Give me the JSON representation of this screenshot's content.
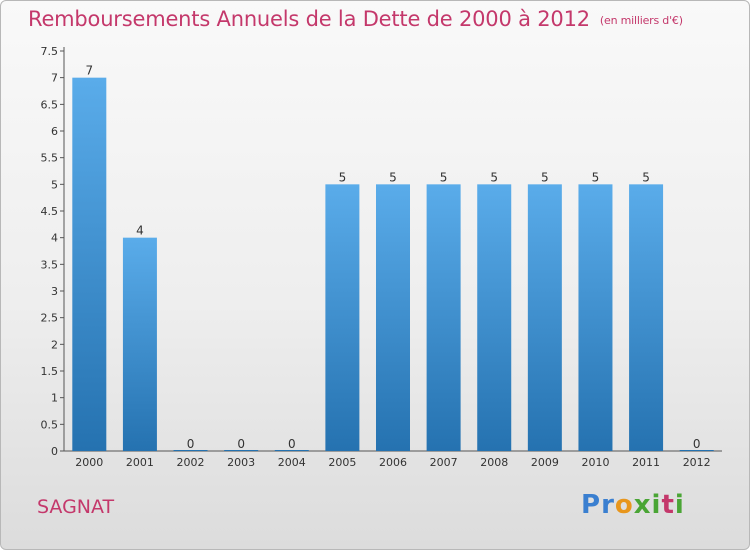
{
  "header": {
    "title": "Remboursements Annuels de la Dette de 2000 à 2012",
    "unit": "(en milliers d'€)"
  },
  "footer": {
    "commune": "SAGNAT",
    "brand": "Proxiti"
  },
  "colors": {
    "bar_light": "#5aacea",
    "bar_dark": "#2572b0",
    "title": "#c4386b",
    "brand_p": "#3a7fd0",
    "brand_r": "#3a7fd0",
    "brand_o": "#e8961c",
    "brand_x": "#4aa535",
    "brand_i": "#4aa535",
    "brand_t": "#c4386b",
    "brand_i2": "#4aa535"
  },
  "chart_data": {
    "type": "bar",
    "categories": [
      "2000",
      "2001",
      "2002",
      "2003",
      "2004",
      "2005",
      "2006",
      "2007",
      "2008",
      "2009",
      "2010",
      "2011",
      "2012"
    ],
    "values": [
      7,
      4,
      0,
      0,
      0,
      5,
      5,
      5,
      5,
      5,
      5,
      5,
      0
    ],
    "value_labels": [
      "7",
      "4",
      "0",
      "0",
      "0",
      "5",
      "5",
      "5",
      "5",
      "5",
      "5",
      "5",
      "0"
    ],
    "ylim": [
      0,
      7.5
    ],
    "yticks": [
      0,
      0.5,
      1,
      1.5,
      2,
      2.5,
      3,
      3.5,
      4,
      4.5,
      5,
      5.5,
      6,
      6.5,
      7,
      7.5
    ],
    "ytick_labels": [
      "0",
      "0.5",
      "1",
      "1.5",
      "2",
      "2.5",
      "3",
      "3.5",
      "4",
      "4.5",
      "5",
      "5.5",
      "6",
      "6.5",
      "7",
      "7.5"
    ],
    "xlabel": "",
    "ylabel": "",
    "grid": false,
    "legend": "none"
  }
}
